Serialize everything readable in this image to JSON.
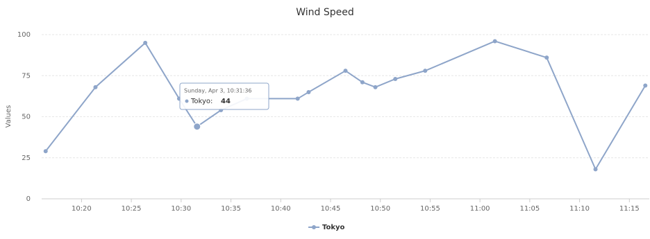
{
  "chart_data": {
    "type": "line",
    "title": "Wind Speed",
    "y_label": "Values",
    "x": [
      616.4,
      621.4,
      626.4,
      629.8,
      631.6,
      634.0,
      636.6,
      641.7,
      642.8,
      646.5,
      648.2,
      649.5,
      651.5,
      654.5,
      661.5,
      666.7,
      671.6,
      676.6
    ],
    "series": [
      {
        "name": "Tokyo",
        "color": "#8ea5c9",
        "values": [
          29,
          68,
          95,
          61,
          44,
          54,
          61,
          61,
          65,
          78,
          71,
          68,
          73,
          78,
          96,
          86,
          18,
          69
        ]
      }
    ],
    "xlim": [
      616,
      677
    ],
    "xticks": [
      {
        "value": 620,
        "label": "10:20"
      },
      {
        "value": 625,
        "label": "10:25"
      },
      {
        "value": 630,
        "label": "10:30"
      },
      {
        "value": 635,
        "label": "10:35"
      },
      {
        "value": 640,
        "label": "10:40"
      },
      {
        "value": 645,
        "label": "10:45"
      },
      {
        "value": 650,
        "label": "10:50"
      },
      {
        "value": 655,
        "label": "10:55"
      },
      {
        "value": 660,
        "label": "11:00"
      },
      {
        "value": 665,
        "label": "11:05"
      },
      {
        "value": 670,
        "label": "11:10"
      },
      {
        "value": 675,
        "label": "11:15"
      }
    ],
    "ylim": [
      0,
      100
    ],
    "yticks": [
      0,
      25,
      50,
      75,
      100
    ],
    "grid": true,
    "tooltip": {
      "date": "Sunday, Apr 3, 10:31:36",
      "label": "Tokyo:",
      "point": 4
    }
  }
}
